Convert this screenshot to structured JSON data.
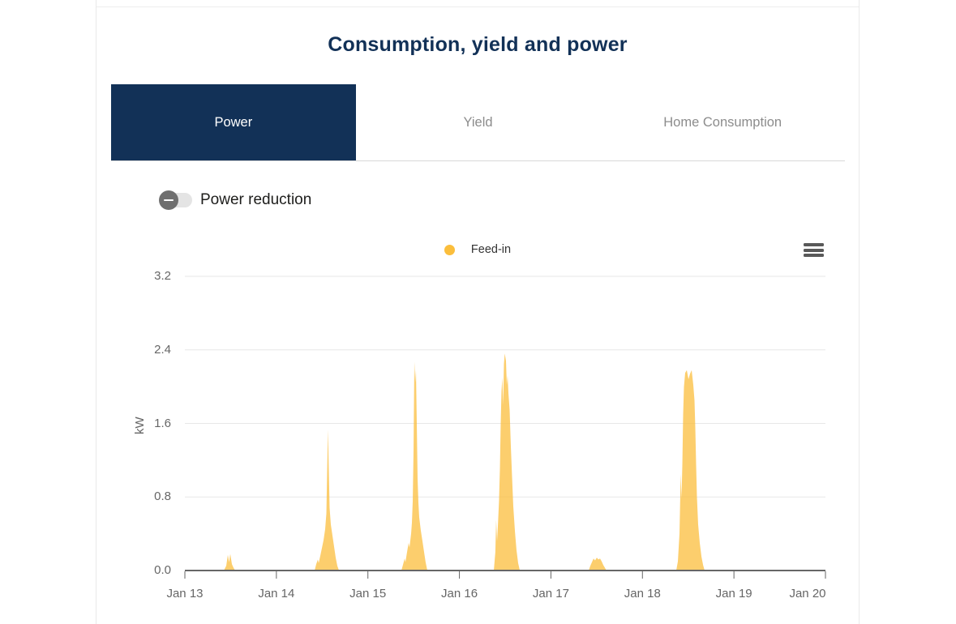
{
  "page": {
    "title": "Consumption, yield and power"
  },
  "tabs": {
    "items": [
      {
        "label": "Power",
        "active": true
      },
      {
        "label": "Yield",
        "active": false
      },
      {
        "label": "Home Consumption",
        "active": false
      }
    ]
  },
  "power_reduction": {
    "label": "Power reduction",
    "state": "off"
  },
  "chart": {
    "legend": {
      "items": [
        {
          "name": "Feed-in",
          "color": "#fbbe3c"
        }
      ]
    },
    "export_icon": "hamburger-menu-icon",
    "accent_navy": "#123157",
    "grid_color": "#e7e7e7",
    "axis_color": "#666666"
  },
  "chart_data": {
    "type": "area",
    "title": "",
    "xlabel": "",
    "ylabel": "kW",
    "ylim": [
      0,
      3.2
    ],
    "y_ticks": [
      0,
      0.8,
      1.6,
      2.4,
      3.2
    ],
    "y_tick_labels": [
      "0.0",
      "0.8",
      "1.6",
      "2.4",
      "3.2"
    ],
    "x_labels": [
      "Jan 13",
      "Jan 14",
      "Jan 15",
      "Jan 16",
      "Jan 17",
      "Jan 18",
      "Jan 19",
      "Jan 20"
    ],
    "x_range_days": [
      0,
      7
    ],
    "grid": true,
    "legend_position": "top-center",
    "series": [
      {
        "name": "Feed-in",
        "color": "#fbbe3c",
        "fill_opacity": 0.75,
        "points": [
          [
            0,
            0
          ],
          [
            0.425,
            0
          ],
          [
            0.452,
            0.05
          ],
          [
            0.47,
            0.17
          ],
          [
            0.483,
            0.09
          ],
          [
            0.496,
            0.18
          ],
          [
            0.514,
            0.07
          ],
          [
            0.532,
            0.03
          ],
          [
            0.549,
            0
          ],
          [
            1.418,
            0
          ],
          [
            1.435,
            0.07
          ],
          [
            1.453,
            0.12
          ],
          [
            1.462,
            0.08
          ],
          [
            1.48,
            0.16
          ],
          [
            1.497,
            0.24
          ],
          [
            1.515,
            0.33
          ],
          [
            1.533,
            0.45
          ],
          [
            1.546,
            0.62
          ],
          [
            1.555,
            1.1
          ],
          [
            1.564,
            1.53
          ],
          [
            1.573,
            1.1
          ],
          [
            1.582,
            0.68
          ],
          [
            1.595,
            0.5
          ],
          [
            1.613,
            0.38
          ],
          [
            1.63,
            0.26
          ],
          [
            1.648,
            0.14
          ],
          [
            1.666,
            0.05
          ],
          [
            1.684,
            0
          ],
          [
            2.366,
            0
          ],
          [
            2.383,
            0.06
          ],
          [
            2.401,
            0.13
          ],
          [
            2.41,
            0.09
          ],
          [
            2.428,
            0.2
          ],
          [
            2.445,
            0.3
          ],
          [
            2.454,
            0.25
          ],
          [
            2.472,
            0.4
          ],
          [
            2.481,
            0.52
          ],
          [
            2.49,
            0.75
          ],
          [
            2.499,
            1.3
          ],
          [
            2.508,
            2.27
          ],
          [
            2.517,
            2.05
          ],
          [
            2.525,
            2.18
          ],
          [
            2.534,
            1.6
          ],
          [
            2.543,
            1.0
          ],
          [
            2.552,
            0.74
          ],
          [
            2.561,
            0.58
          ],
          [
            2.578,
            0.44
          ],
          [
            2.596,
            0.32
          ],
          [
            2.614,
            0.2
          ],
          [
            2.631,
            0.09
          ],
          [
            2.649,
            0
          ],
          [
            3.376,
            0
          ],
          [
            3.393,
            0.2
          ],
          [
            3.402,
            0.55
          ],
          [
            3.411,
            0.32
          ],
          [
            3.42,
            0.48
          ],
          [
            3.433,
            0.75
          ],
          [
            3.442,
            1.1
          ],
          [
            3.451,
            1.6
          ],
          [
            3.46,
            1.95
          ],
          [
            3.469,
            2.1
          ],
          [
            3.478,
            1.8
          ],
          [
            3.487,
            2.25
          ],
          [
            3.496,
            2.36
          ],
          [
            3.509,
            2.28
          ],
          [
            3.518,
            2.02
          ],
          [
            3.527,
            2.12
          ],
          [
            3.536,
            1.92
          ],
          [
            3.549,
            1.75
          ],
          [
            3.562,
            1.35
          ],
          [
            3.576,
            1.0
          ],
          [
            3.589,
            0.7
          ],
          [
            3.607,
            0.42
          ],
          [
            3.624,
            0.22
          ],
          [
            3.642,
            0.08
          ],
          [
            3.66,
            0
          ],
          [
            4.413,
            0
          ],
          [
            4.43,
            0.05
          ],
          [
            4.448,
            0.09
          ],
          [
            4.466,
            0.13
          ],
          [
            4.483,
            0.11
          ],
          [
            4.501,
            0.14
          ],
          [
            4.519,
            0.12
          ],
          [
            4.537,
            0.13
          ],
          [
            4.554,
            0.1
          ],
          [
            4.572,
            0.06
          ],
          [
            4.59,
            0.03
          ],
          [
            4.607,
            0
          ],
          [
            5.37,
            0
          ],
          [
            5.387,
            0.1
          ],
          [
            5.405,
            0.4
          ],
          [
            5.418,
            1.05
          ],
          [
            5.427,
            0.78
          ],
          [
            5.436,
            1.15
          ],
          [
            5.445,
            1.7
          ],
          [
            5.454,
            2.0
          ],
          [
            5.467,
            2.15
          ],
          [
            5.485,
            2.18
          ],
          [
            5.503,
            2.08
          ],
          [
            5.52,
            2.14
          ],
          [
            5.538,
            2.18
          ],
          [
            5.556,
            2.02
          ],
          [
            5.569,
            1.85
          ],
          [
            5.578,
            1.55
          ],
          [
            5.587,
            1.15
          ],
          [
            5.596,
            0.8
          ],
          [
            5.609,
            0.5
          ],
          [
            5.627,
            0.3
          ],
          [
            5.645,
            0.15
          ],
          [
            5.663,
            0.06
          ],
          [
            5.68,
            0
          ],
          [
            7,
            0
          ]
        ]
      }
    ]
  }
}
